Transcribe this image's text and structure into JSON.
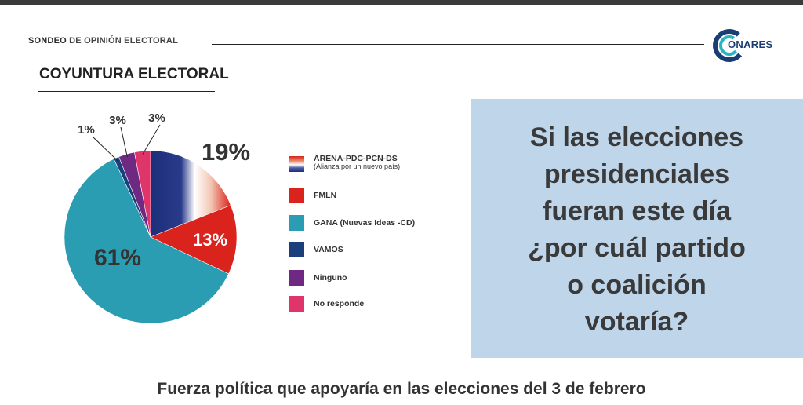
{
  "header": {
    "bold_word": "SONDEO",
    "rest": " DE OPINIÓN ELECTORAL"
  },
  "logo": {
    "text": "ONARES",
    "color": "#1a3d73",
    "accent_color": "#2bb3c0"
  },
  "section_title": "COYUNTURA ELECTORAL",
  "question": {
    "lines": [
      "Si las elecciones",
      "presidenciales",
      "fueran este día",
      "¿por cuál partido",
      "o coalición",
      "votaría?"
    ],
    "background": "#bed5ea"
  },
  "footer": "Fuerza política que apoyaría en las elecciones del 3 de febrero",
  "chart_data": {
    "type": "pie",
    "slices": [
      {
        "name": "ARENA-PDC-PCN-DS",
        "sub": "(Alianza por un nuevo país)",
        "value": 19,
        "label": "19%",
        "color": "gradient-arena"
      },
      {
        "name": "FMLN",
        "sub": "",
        "value": 13,
        "label": "13%",
        "color": "#d9231c"
      },
      {
        "name": "GANA (Nuevas Ideas -CD)",
        "sub": "",
        "value": 61,
        "label": "61%",
        "color": "#2a9db2"
      },
      {
        "name": "VAMOS",
        "sub": "",
        "value": 1,
        "label": "1%",
        "color": "#1b3f7a"
      },
      {
        "name": "Ninguno",
        "sub": "",
        "value": 3,
        "label": "3%",
        "color": "#6e2a82"
      },
      {
        "name": "No responde",
        "sub": "",
        "value": 3,
        "label": "3%",
        "color": "#e0356a"
      }
    ],
    "legend_placement": "right"
  }
}
